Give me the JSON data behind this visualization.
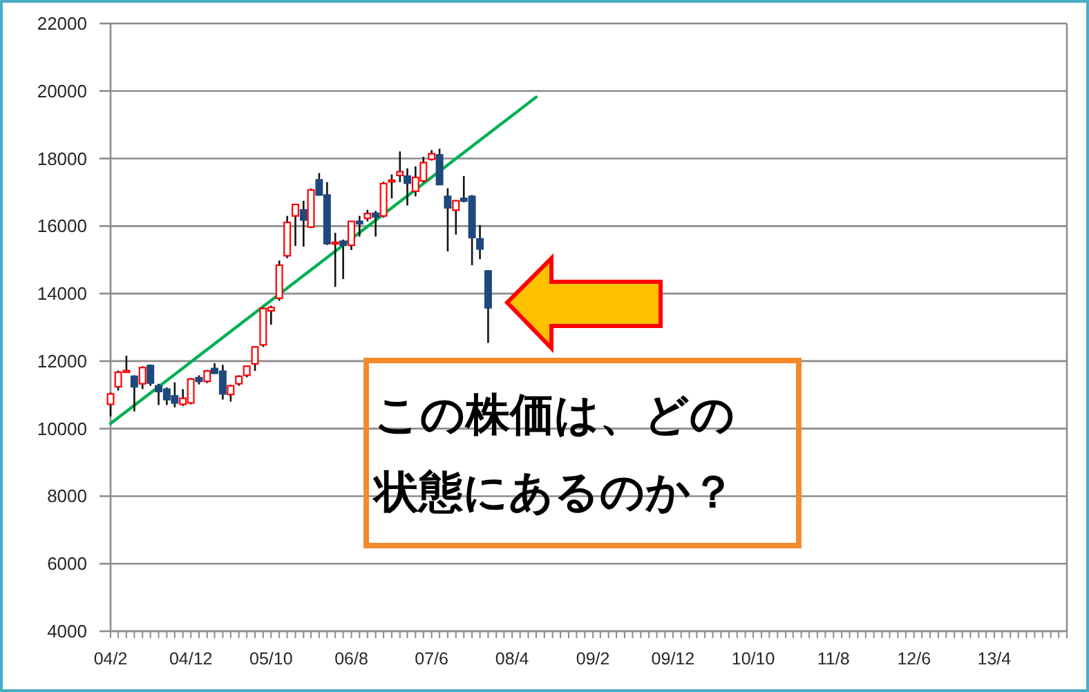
{
  "chart_data": {
    "type": "candlestick",
    "x": [
      "2004-02",
      "2004-03",
      "2004-04",
      "2004-05",
      "2004-06",
      "2004-07",
      "2004-08",
      "2004-09",
      "2004-10",
      "2004-11",
      "2004-12",
      "2005-01",
      "2005-02",
      "2005-03",
      "2005-04",
      "2005-05",
      "2005-06",
      "2005-07",
      "2005-08",
      "2005-09",
      "2005-10",
      "2005-11",
      "2005-12",
      "2006-01",
      "2006-02",
      "2006-03",
      "2006-04",
      "2006-05",
      "2006-06",
      "2006-07",
      "2006-08",
      "2006-09",
      "2006-10",
      "2006-11",
      "2006-12",
      "2007-01",
      "2007-02",
      "2007-03",
      "2007-04",
      "2007-05",
      "2007-06",
      "2007-07",
      "2007-08",
      "2007-09",
      "2007-10",
      "2007-11",
      "2007-12",
      "2008-01"
    ],
    "ohlc": [
      [
        10720,
        11070,
        10360,
        11030
      ],
      [
        11240,
        11720,
        11130,
        11670
      ],
      [
        11670,
        12160,
        11660,
        11720
      ],
      [
        11550,
        11580,
        10510,
        11240
      ],
      [
        11330,
        11850,
        11170,
        11810
      ],
      [
        11870,
        11900,
        11270,
        11350
      ],
      [
        11270,
        11330,
        10700,
        11100
      ],
      [
        11170,
        11220,
        10700,
        10860
      ],
      [
        10970,
        11370,
        10630,
        10760
      ],
      [
        10720,
        11170,
        10670,
        10900
      ],
      [
        10760,
        11500,
        10720,
        11470
      ],
      [
        11510,
        11580,
        11310,
        11400
      ],
      [
        11400,
        11740,
        11350,
        11710
      ],
      [
        11780,
        11940,
        11620,
        11640
      ],
      [
        11700,
        11890,
        10860,
        11030
      ],
      [
        11010,
        11300,
        10800,
        11270
      ],
      [
        11330,
        11580,
        11270,
        11550
      ],
      [
        11580,
        11870,
        11520,
        11850
      ],
      [
        11920,
        12440,
        11710,
        12420
      ],
      [
        12480,
        13590,
        12420,
        13560
      ],
      [
        13490,
        13640,
        13080,
        13590
      ],
      [
        13860,
        14980,
        13790,
        14840
      ],
      [
        15120,
        16300,
        15050,
        16110
      ],
      [
        16300,
        16650,
        15410,
        16640
      ],
      [
        16480,
        16750,
        15390,
        16180
      ],
      [
        15970,
        17110,
        15940,
        17070
      ],
      [
        17370,
        17570,
        16900,
        16920
      ],
      [
        16920,
        17300,
        15440,
        15480
      ],
      [
        15480,
        15800,
        14200,
        15520
      ],
      [
        15550,
        15600,
        14430,
        15430
      ],
      [
        15430,
        16150,
        15290,
        16140
      ],
      [
        16140,
        16300,
        15690,
        16070
      ],
      [
        16230,
        16480,
        16140,
        16370
      ],
      [
        16380,
        16450,
        15690,
        16270
      ],
      [
        16300,
        17310,
        16250,
        17260
      ],
      [
        17310,
        17530,
        16820,
        17360
      ],
      [
        17500,
        18210,
        17300,
        17610
      ],
      [
        17480,
        17710,
        16610,
        17270
      ],
      [
        17030,
        17770,
        16880,
        17440
      ],
      [
        17340,
        18050,
        17290,
        17880
      ],
      [
        17980,
        18250,
        17940,
        18140
      ],
      [
        18110,
        18290,
        17210,
        17230
      ],
      [
        16880,
        17120,
        15250,
        16540
      ],
      [
        16470,
        16770,
        15750,
        16750
      ],
      [
        16820,
        17480,
        16700,
        16740
      ],
      [
        16880,
        16920,
        14840,
        15660
      ],
      [
        15620,
        16030,
        15020,
        15320
      ],
      [
        14670,
        14690,
        12540,
        13580
      ]
    ],
    "colors": [
      "#ff0000",
      "#ff0000",
      "#ff0000",
      "#1f497d",
      "#ff0000",
      "#1f497d",
      "#1f497d",
      "#1f497d",
      "#1f497d",
      "#ff0000",
      "#ff0000",
      "#1f497d",
      "#ff0000",
      "#1f497d",
      "#1f497d",
      "#ff0000",
      "#ff0000",
      "#ff0000",
      "#ff0000",
      "#ff0000",
      "#ff0000",
      "#ff0000",
      "#ff0000",
      "#ff0000",
      "#1f497d",
      "#ff0000",
      "#1f497d",
      "#1f497d",
      "#ff0000",
      "#1f497d",
      "#ff0000",
      "#1f497d",
      "#ff0000",
      "#1f497d",
      "#ff0000",
      "#ff0000",
      "#ff0000",
      "#1f497d",
      "#ff0000",
      "#ff0000",
      "#ff0000",
      "#1f497d",
      "#1f497d",
      "#ff0000",
      "#1f497d",
      "#1f497d",
      "#1f497d",
      "#1f497d"
    ],
    "series": [
      {
        "type": "line",
        "color": "#00b050",
        "x": [
          "2004-02",
          "2008-07"
        ],
        "values": [
          10150,
          19820
        ]
      }
    ],
    "xlim": [
      "2004-02",
      "2014-01"
    ],
    "xticks": [
      {
        "value": "2004-02",
        "label": "04/2"
      },
      {
        "value": "2004-03",
        "label": null
      },
      {
        "value": "2004-04",
        "label": null
      },
      {
        "value": "2004-05",
        "label": null
      },
      {
        "value": "2004-06",
        "label": null
      },
      {
        "value": "2004-07",
        "label": null
      },
      {
        "value": "2004-08",
        "label": null
      },
      {
        "value": "2004-09",
        "label": null
      },
      {
        "value": "2004-10",
        "label": null
      },
      {
        "value": "2004-11",
        "label": null
      },
      {
        "value": "2004-12",
        "label": "04/12"
      },
      {
        "value": "2005-01",
        "label": null
      },
      {
        "value": "2005-02",
        "label": null
      },
      {
        "value": "2005-03",
        "label": null
      },
      {
        "value": "2005-04",
        "label": null
      },
      {
        "value": "2005-05",
        "label": null
      },
      {
        "value": "2005-06",
        "label": null
      },
      {
        "value": "2005-07",
        "label": null
      },
      {
        "value": "2005-08",
        "label": null
      },
      {
        "value": "2005-09",
        "label": null
      },
      {
        "value": "2005-10",
        "label": "05/10"
      },
      {
        "value": "2005-11",
        "label": null
      },
      {
        "value": "2005-12",
        "label": null
      },
      {
        "value": "2006-01",
        "label": null
      },
      {
        "value": "2006-02",
        "label": null
      },
      {
        "value": "2006-03",
        "label": null
      },
      {
        "value": "2006-04",
        "label": null
      },
      {
        "value": "2006-05",
        "label": null
      },
      {
        "value": "2006-06",
        "label": null
      },
      {
        "value": "2006-07",
        "label": null
      },
      {
        "value": "2006-08",
        "label": "06/8"
      },
      {
        "value": "2006-09",
        "label": null
      },
      {
        "value": "2006-10",
        "label": null
      },
      {
        "value": "2006-11",
        "label": null
      },
      {
        "value": "2006-12",
        "label": null
      },
      {
        "value": "2007-01",
        "label": null
      },
      {
        "value": "2007-02",
        "label": null
      },
      {
        "value": "2007-03",
        "label": null
      },
      {
        "value": "2007-04",
        "label": null
      },
      {
        "value": "2007-05",
        "label": null
      },
      {
        "value": "2007-06",
        "label": "07/6"
      },
      {
        "value": "2007-07",
        "label": null
      },
      {
        "value": "2007-08",
        "label": null
      },
      {
        "value": "2007-09",
        "label": null
      },
      {
        "value": "2007-10",
        "label": null
      },
      {
        "value": "2007-11",
        "label": null
      },
      {
        "value": "2007-12",
        "label": null
      },
      {
        "value": "2008-01",
        "label": null
      },
      {
        "value": "2008-02",
        "label": null
      },
      {
        "value": "2008-03",
        "label": null
      },
      {
        "value": "2008-04",
        "label": "08/4"
      },
      {
        "value": "2008-05",
        "label": null
      },
      {
        "value": "2008-06",
        "label": null
      },
      {
        "value": "2008-07",
        "label": null
      },
      {
        "value": "2008-08",
        "label": null
      },
      {
        "value": "2008-09",
        "label": null
      },
      {
        "value": "2008-10",
        "label": null
      },
      {
        "value": "2008-11",
        "label": null
      },
      {
        "value": "2008-12",
        "label": null
      },
      {
        "value": "2009-01",
        "label": null
      },
      {
        "value": "2009-02",
        "label": "09/2"
      },
      {
        "value": "2009-03",
        "label": null
      },
      {
        "value": "2009-04",
        "label": null
      },
      {
        "value": "2009-05",
        "label": null
      },
      {
        "value": "2009-06",
        "label": null
      },
      {
        "value": "2009-07",
        "label": null
      },
      {
        "value": "2009-08",
        "label": null
      },
      {
        "value": "2009-09",
        "label": null
      },
      {
        "value": "2009-10",
        "label": null
      },
      {
        "value": "2009-11",
        "label": null
      },
      {
        "value": "2009-12",
        "label": "09/12"
      },
      {
        "value": "2010-01",
        "label": null
      },
      {
        "value": "2010-02",
        "label": null
      },
      {
        "value": "2010-03",
        "label": null
      },
      {
        "value": "2010-04",
        "label": null
      },
      {
        "value": "2010-05",
        "label": null
      },
      {
        "value": "2010-06",
        "label": null
      },
      {
        "value": "2010-07",
        "label": null
      },
      {
        "value": "2010-08",
        "label": null
      },
      {
        "value": "2010-09",
        "label": null
      },
      {
        "value": "2010-10",
        "label": "10/10"
      },
      {
        "value": "2010-11",
        "label": null
      },
      {
        "value": "2010-12",
        "label": null
      },
      {
        "value": "2011-01",
        "label": null
      },
      {
        "value": "2011-02",
        "label": null
      },
      {
        "value": "2011-03",
        "label": null
      },
      {
        "value": "2011-04",
        "label": null
      },
      {
        "value": "2011-05",
        "label": null
      },
      {
        "value": "2011-06",
        "label": null
      },
      {
        "value": "2011-07",
        "label": null
      },
      {
        "value": "2011-08",
        "label": "11/8"
      },
      {
        "value": "2011-09",
        "label": null
      },
      {
        "value": "2011-10",
        "label": null
      },
      {
        "value": "2011-11",
        "label": null
      },
      {
        "value": "2011-12",
        "label": null
      },
      {
        "value": "2012-01",
        "label": null
      },
      {
        "value": "2012-02",
        "label": null
      },
      {
        "value": "2012-03",
        "label": null
      },
      {
        "value": "2012-04",
        "label": null
      },
      {
        "value": "2012-05",
        "label": null
      },
      {
        "value": "2012-06",
        "label": "12/6"
      },
      {
        "value": "2012-07",
        "label": null
      },
      {
        "value": "2012-08",
        "label": null
      },
      {
        "value": "2012-09",
        "label": null
      },
      {
        "value": "2012-10",
        "label": null
      },
      {
        "value": "2012-11",
        "label": null
      },
      {
        "value": "2012-12",
        "label": null
      },
      {
        "value": "2013-01",
        "label": null
      },
      {
        "value": "2013-02",
        "label": null
      },
      {
        "value": "2013-03",
        "label": null
      },
      {
        "value": "2013-04",
        "label": "13/4"
      },
      {
        "value": "2013-05",
        "label": null
      },
      {
        "value": "2013-06",
        "label": null
      },
      {
        "value": "2013-07",
        "label": null
      },
      {
        "value": "2013-08",
        "label": null
      },
      {
        "value": "2013-09",
        "label": null
      },
      {
        "value": "2013-10",
        "label": null
      },
      {
        "value": "2013-11",
        "label": null
      },
      {
        "value": "2013-12",
        "label": null
      },
      {
        "value": "2014-01",
        "label": null
      }
    ],
    "ylim": [
      4000,
      22000
    ],
    "yticks": [
      4000,
      6000,
      8000,
      10000,
      12000,
      14000,
      16000,
      18000,
      20000,
      22000
    ],
    "grid": "y",
    "annotations": [
      "この株価は、どの状態にあるのか？"
    ]
  }
}
